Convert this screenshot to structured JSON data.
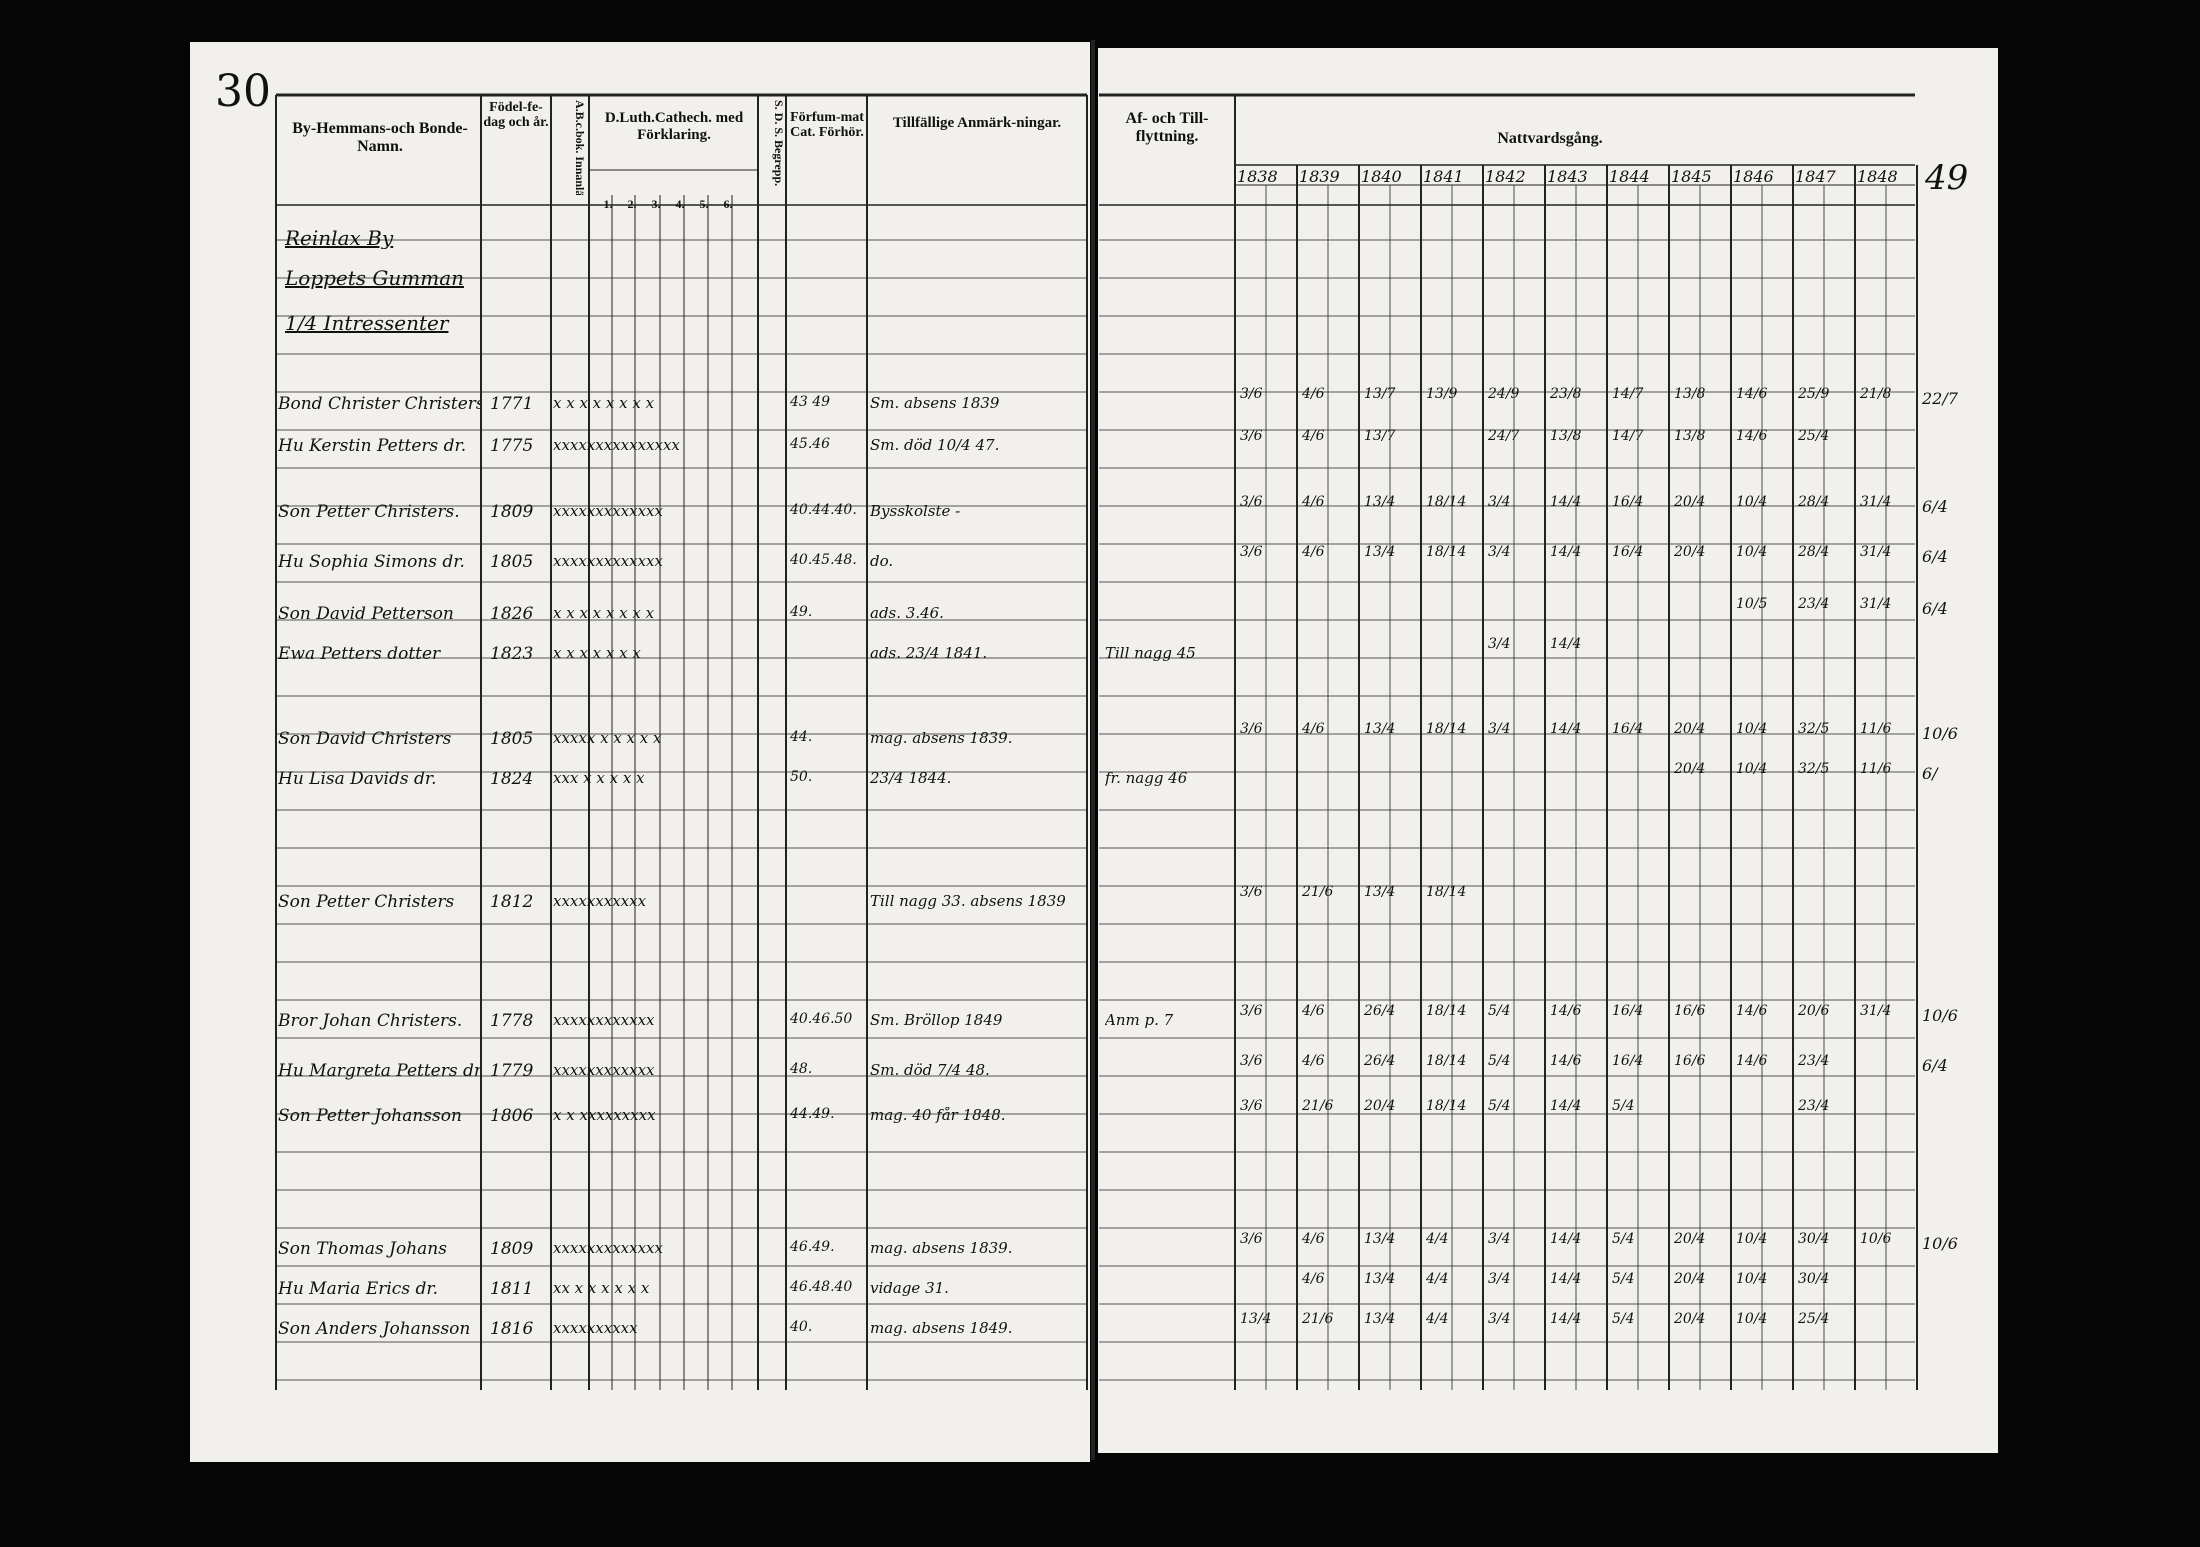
{
  "page_numbers": {
    "left": "30",
    "right": "49"
  },
  "left_header": {
    "name": "By-Hemmans-och Bonde-Namn.",
    "birth": "Födel-fe-dag och år.",
    "abc": "A.B.c.bok. Innanläsn.",
    "catechism": "D.Luth.Cathech. med Förklaring.",
    "catechism_parts": [
      "1.",
      "2.",
      "3.",
      "4.",
      "5.",
      "6."
    ],
    "sds": "S. D. S. Begrepp.",
    "exam": "Förfum-mat Cat. Förhör.",
    "remarks": "Tillfällige Anmärk-ningar."
  },
  "right_header": {
    "moves": "Af- och Till-flyttning.",
    "communion": "Nattvardsgång.",
    "years": [
      "1838",
      "1839",
      "1840",
      "1841",
      "1842",
      "1843",
      "1844",
      "1845",
      "1846",
      "1847",
      "1848"
    ]
  },
  "village": [
    "Reinlax By",
    "Loppets Gumman",
    "1/4 Intressenter"
  ],
  "entries": [
    {
      "name": "Bond Christer Christers.",
      "born": "1771",
      "knowledge": "x x x x x x x x",
      "exam": "43 49",
      "remark": "Sm. absens 1839",
      "communion": [
        "3/6",
        "4/6",
        "13/7",
        "13/9",
        "24/9",
        "23/8",
        "14/7",
        "13/8",
        "14/6",
        "25/9",
        "21/8"
      ],
      "margin": "22/7"
    },
    {
      "name": "Hu Kerstin Petters dr.",
      "born": "1775",
      "knowledge": "xxxxxxxxxxxxxxx",
      "exam": "45.46",
      "remark": "Sm. död 10/4 47.",
      "communion": [
        "3/6",
        "4/6",
        "13/7",
        null,
        "24/7",
        "13/8",
        "14/7",
        "13/8",
        "14/6",
        "25/4",
        null
      ],
      "margin": null
    },
    {
      "name": "Son Petter Christers.",
      "born": "1809",
      "knowledge": "xxxxxxxxxxxxx",
      "exam": "40.44.40.",
      "remark": "Bysskolste -",
      "communion": [
        "3/6",
        "4/6",
        "13/4",
        "18/14",
        "3/4",
        "14/4",
        "16/4",
        "20/4",
        "10/4",
        "28/4",
        "31/4"
      ],
      "margin": "6/4"
    },
    {
      "name": "Hu Sophia Simons dr.",
      "born": "1805",
      "knowledge": "xxxxxxxxxxxxx",
      "exam": "40.45.48.",
      "remark": "do.",
      "communion": [
        "3/6",
        "4/6",
        "13/4",
        "18/14",
        "3/4",
        "14/4",
        "16/4",
        "20/4",
        "10/4",
        "28/4",
        "31/4"
      ],
      "margin": "6/4"
    },
    {
      "name": "Son David Petterson",
      "born": "1826",
      "knowledge": "x x x x x x x x",
      "exam": "49.",
      "remark": "ads. 3.46.",
      "communion": [
        null,
        null,
        null,
        null,
        null,
        null,
        null,
        null,
        "10/5",
        "23/4",
        "31/4"
      ],
      "margin": "6/4"
    },
    {
      "name": "Ewa Petters dotter",
      "born": "1823",
      "knowledge": "x x x x x x x",
      "exam": null,
      "remark": "ads. 23/4 1841.",
      "moves": "Till nagg 45",
      "communion": [
        null,
        null,
        null,
        null,
        "3/4",
        "14/4",
        null,
        null,
        null,
        null,
        null
      ],
      "margin": null
    },
    {
      "name": "Son David Christers",
      "born": "1805",
      "knowledge": "xxxxx x x x x x",
      "exam": "44.",
      "remark": "mag. absens 1839.",
      "communion": [
        "3/6",
        "4/6",
        "13/4",
        "18/14",
        "3/4",
        "14/4",
        "16/4",
        "20/4",
        "10/4",
        "32/5",
        "11/6"
      ],
      "margin": "10/6"
    },
    {
      "name": "Hu Lisa Davids dr.",
      "born": "1824",
      "knowledge": "xxx x x x x x",
      "exam": "50.",
      "remark": "23/4 1844.",
      "moves": "fr. nagg 46",
      "communion": [
        null,
        null,
        null,
        null,
        null,
        null,
        null,
        "20/4",
        "10/4",
        "32/5",
        "11/6"
      ],
      "margin": "6/"
    },
    {
      "name": "Son Petter Christers",
      "born": "1812",
      "knowledge": "xxxxxxxxxxx",
      "exam": null,
      "remark": "Till nagg 33. absens 1839",
      "communion": [
        "3/6",
        "21/6",
        "13/4",
        "18/14",
        null,
        null,
        null,
        null,
        null,
        null,
        null
      ],
      "margin": null
    },
    {
      "name": "Bror Johan Christers.",
      "born": "1778",
      "knowledge": "xxxxxxxxxxxx",
      "exam": "40.46.50",
      "remark": "Sm. Bröllop 1849",
      "moves": "Anm p. 7",
      "communion": [
        "3/6",
        "4/6",
        "26/4",
        "18/14",
        "5/4",
        "14/6",
        "16/4",
        "16/6",
        "14/6",
        "20/6",
        "31/4"
      ],
      "margin": "10/6"
    },
    {
      "name": "Hu Margreta Petters dr.",
      "born": "1779",
      "knowledge": "xxxxxxxxxxxx",
      "exam": "48.",
      "remark": "Sm. död 7/4 48.",
      "communion": [
        "3/6",
        "4/6",
        "26/4",
        "18/14",
        "5/4",
        "14/6",
        "16/4",
        "16/6",
        "14/6",
        "23/4",
        null
      ],
      "margin": "6/4"
    },
    {
      "name": "Son Petter Johansson",
      "born": "1806",
      "knowledge": "x x xxxxxxxxx",
      "exam": "44.49.",
      "remark": "mag. 40 får 1848.",
      "communion": [
        "3/6",
        "21/6",
        "20/4",
        "18/14",
        "5/4",
        "14/4",
        "5/4",
        null,
        null,
        "23/4",
        null
      ],
      "margin": null
    },
    {
      "name": "Son Thomas Johans",
      "born": "1809",
      "knowledge": "xxxxxxxxxxxxx",
      "exam": "46.49.",
      "remark": "mag. absens 1839.",
      "communion": [
        "3/6",
        "4/6",
        "13/4",
        "4/4",
        "3/4",
        "14/4",
        "5/4",
        "20/4",
        "10/4",
        "30/4",
        "10/6"
      ],
      "margin": "10/6"
    },
    {
      "name": "Hu Maria Erics dr.",
      "born": "1811",
      "knowledge": "xx x x x x x x",
      "exam": "46.48.40",
      "remark": "vidage 31.",
      "communion": [
        null,
        "4/6",
        "13/4",
        "4/4",
        "3/4",
        "14/4",
        "5/4",
        "20/4",
        "10/4",
        "30/4",
        null
      ],
      "margin": null
    },
    {
      "name": "Son Anders Johansson",
      "born": "1816",
      "knowledge": "xxxxxxxxxx",
      "exam": "40.",
      "remark": "mag. absens 1849.",
      "communion": [
        "13/4",
        "21/6",
        "13/4",
        "4/4",
        "3/4",
        "14/4",
        "5/4",
        "20/4",
        "10/4",
        "25/4",
        null
      ],
      "margin": null
    }
  ]
}
